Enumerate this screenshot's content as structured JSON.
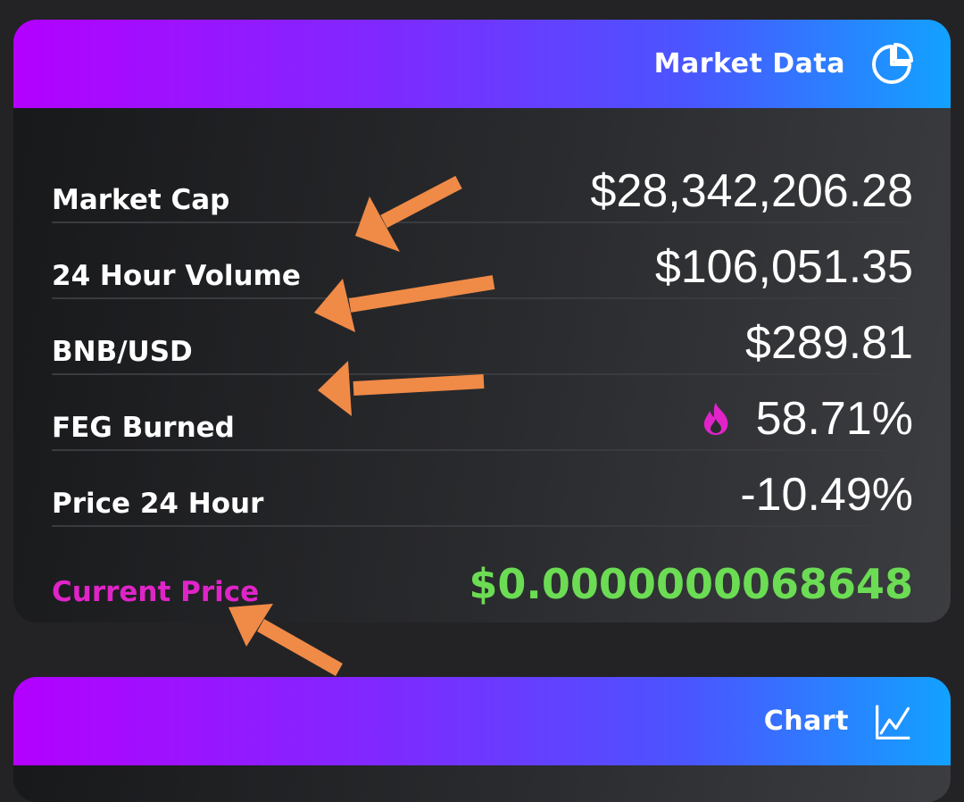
{
  "market_card": {
    "title": "Market Data",
    "icon": "pie-chart-icon",
    "rows": [
      {
        "label": "Market Cap",
        "value": "$28,342,206.28"
      },
      {
        "label": "24 Hour Volume",
        "value": "$106,051.35"
      },
      {
        "label": "BNB/USD",
        "value": "$289.81"
      },
      {
        "label": "FEG Burned",
        "value": "58.71%",
        "icon": "fire-icon"
      },
      {
        "label": "Price 24 Hour",
        "value": "-10.49%"
      },
      {
        "label": "Current Price",
        "value": "$0.0000000068648"
      }
    ]
  },
  "chart_card": {
    "title": "Chart",
    "icon": "line-chart-icon"
  },
  "colors": {
    "accent_label": "#e024c8",
    "price_green": "#6bdc53",
    "annotation_arrow": "#f08a47",
    "header_gradient_start": "#b400ff",
    "header_gradient_end": "#12a2ff"
  }
}
